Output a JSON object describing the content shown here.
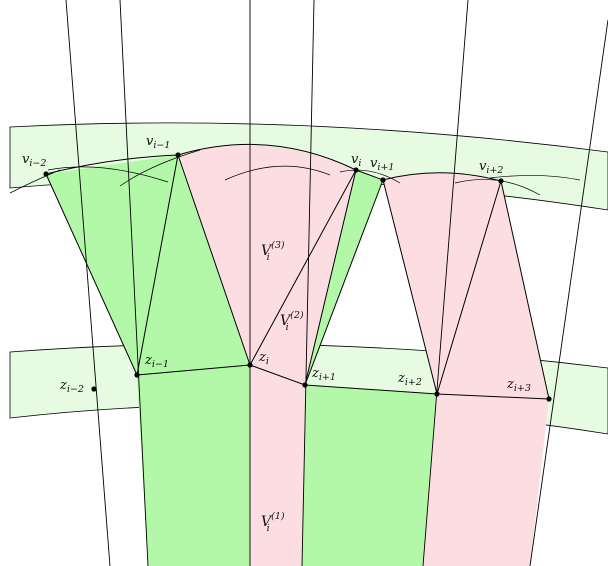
{
  "colors": {
    "band_fill": "#e6fbe2",
    "green_fill": "#b3f7a8",
    "pink_fill": "#fbdde2",
    "stroke": "#000000"
  },
  "labels": {
    "v_im2": {
      "base": "v",
      "sub": "i−2"
    },
    "v_im1": {
      "base": "v",
      "sub": "i−1"
    },
    "v_i": {
      "base": "v",
      "sub": "i"
    },
    "v_ip1": {
      "base": "v",
      "sub": "i+1"
    },
    "v_ip2": {
      "base": "v",
      "sub": "i+2"
    },
    "z_im2": {
      "base": "z",
      "sub": "i−2"
    },
    "z_im1": {
      "base": "z",
      "sub": "i−1"
    },
    "z_i": {
      "base": "z",
      "sub": "i"
    },
    "z_ip1": {
      "base": "z",
      "sub": "i+1"
    },
    "z_ip2": {
      "base": "z",
      "sub": "i+2"
    },
    "z_ip3": {
      "base": "z",
      "sub": "i+3"
    },
    "V3": {
      "base": "V",
      "sub": "i",
      "sup": "(3)"
    },
    "V2": {
      "base": "V",
      "sub": "i",
      "sup": "(2)"
    },
    "V1": {
      "base": "V",
      "sub": "i",
      "sup": "(1)"
    }
  }
}
